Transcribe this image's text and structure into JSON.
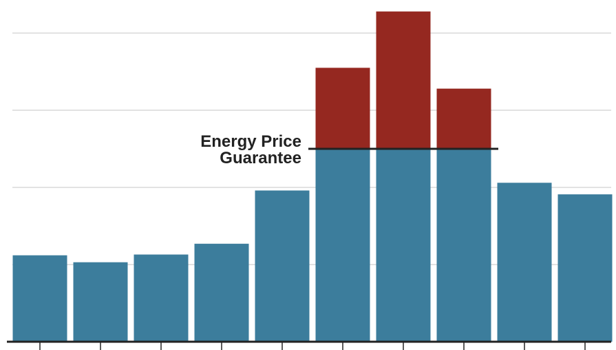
{
  "chart_data": {
    "type": "stacked_bar",
    "categories": [
      null,
      null,
      null,
      null,
      null,
      null,
      null,
      null,
      null,
      null
    ],
    "series": [
      {
        "color": "#3c7d9c",
        "values": [
          1.12,
          1.03,
          1.13,
          1.27,
          1.96,
          2.5,
          2.5,
          2.5,
          2.06,
          1.91
        ]
      },
      {
        "color": "#952820",
        "values": [
          0,
          0,
          0,
          0,
          0,
          1.05,
          1.78,
          0.78,
          0,
          0
        ]
      }
    ],
    "ylim": [
      0,
      4.4
    ],
    "yticks": [
      0,
      1,
      2,
      3,
      4
    ],
    "grid": true,
    "reference_line": {
      "value": 2.5,
      "label": [
        "Energy Price",
        "Guarantee"
      ],
      "color": "#222222"
    }
  }
}
